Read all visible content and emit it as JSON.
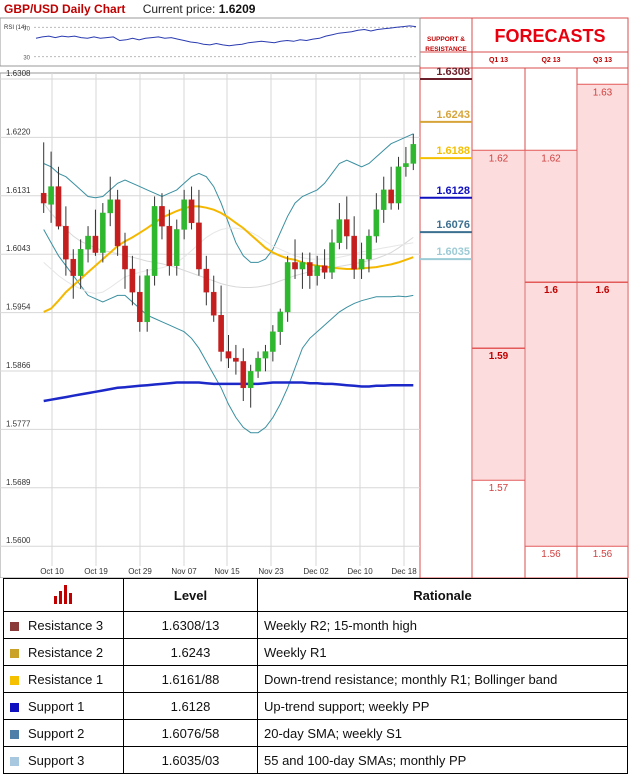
{
  "header": {
    "title": "GBP/USD Daily Chart",
    "price_label": "Current price:",
    "price_value": "1.6209"
  },
  "rsi": {
    "label": "RSI (14)",
    "levels": [
      "70",
      "30"
    ],
    "values": [
      55,
      57,
      58,
      56,
      58,
      57,
      58,
      56,
      55,
      57,
      55,
      56,
      57,
      52,
      53,
      55,
      53,
      55,
      56,
      57,
      55,
      56,
      54,
      52,
      50,
      49,
      47,
      46,
      48,
      46,
      45,
      46,
      47,
      49,
      50,
      51,
      50,
      49,
      51,
      52,
      51,
      53,
      52,
      54,
      55,
      58,
      60,
      62,
      63,
      64,
      66,
      67,
      65,
      67,
      68,
      69,
      70,
      71,
      72,
      71
    ]
  },
  "chart_data": {
    "type": "candlestick",
    "title": "GBP/USD Daily Chart",
    "y_ticks": [
      "1.6308",
      "1.6220",
      "1.6131",
      "1.6043",
      "1.5954",
      "1.5866",
      "1.5777",
      "1.5689",
      "1.5600"
    ],
    "ylim": [
      1.56,
      1.6308
    ],
    "x_ticks": [
      "Oct 10",
      "Oct 19",
      "Oct 29",
      "Nov 07",
      "Nov 15",
      "Nov 23",
      "Dec 02",
      "Dec 10",
      "Dec 18"
    ],
    "grid": true,
    "candles": [
      {
        "o": 1.6135,
        "h": 1.6212,
        "l": 1.6105,
        "c": 1.612
      },
      {
        "o": 1.6118,
        "h": 1.6198,
        "l": 1.609,
        "c": 1.6145
      },
      {
        "o": 1.6145,
        "h": 1.6175,
        "l": 1.608,
        "c": 1.6085
      },
      {
        "o": 1.6085,
        "h": 1.6115,
        "l": 1.601,
        "c": 1.6035
      },
      {
        "o": 1.6035,
        "h": 1.605,
        "l": 1.5975,
        "c": 1.601
      },
      {
        "o": 1.601,
        "h": 1.6065,
        "l": 1.599,
        "c": 1.605
      },
      {
        "o": 1.605,
        "h": 1.6085,
        "l": 1.603,
        "c": 1.607
      },
      {
        "o": 1.607,
        "h": 1.611,
        "l": 1.604,
        "c": 1.6045
      },
      {
        "o": 1.6045,
        "h": 1.612,
        "l": 1.603,
        "c": 1.6105
      },
      {
        "o": 1.6105,
        "h": 1.616,
        "l": 1.6085,
        "c": 1.6125
      },
      {
        "o": 1.6125,
        "h": 1.614,
        "l": 1.604,
        "c": 1.6055
      },
      {
        "o": 1.6055,
        "h": 1.6075,
        "l": 1.599,
        "c": 1.602
      },
      {
        "o": 1.602,
        "h": 1.604,
        "l": 1.5965,
        "c": 1.5985
      },
      {
        "o": 1.5985,
        "h": 1.601,
        "l": 1.5925,
        "c": 1.594
      },
      {
        "o": 1.594,
        "h": 1.602,
        "l": 1.5925,
        "c": 1.601
      },
      {
        "o": 1.601,
        "h": 1.613,
        "l": 1.5995,
        "c": 1.6115
      },
      {
        "o": 1.6115,
        "h": 1.6135,
        "l": 1.6065,
        "c": 1.6085
      },
      {
        "o": 1.6085,
        "h": 1.611,
        "l": 1.601,
        "c": 1.6025
      },
      {
        "o": 1.6025,
        "h": 1.6095,
        "l": 1.601,
        "c": 1.608
      },
      {
        "o": 1.608,
        "h": 1.614,
        "l": 1.6065,
        "c": 1.6125
      },
      {
        "o": 1.6125,
        "h": 1.6145,
        "l": 1.608,
        "c": 1.609
      },
      {
        "o": 1.609,
        "h": 1.614,
        "l": 1.601,
        "c": 1.602
      },
      {
        "o": 1.602,
        "h": 1.604,
        "l": 1.5965,
        "c": 1.5985
      },
      {
        "o": 1.5985,
        "h": 1.601,
        "l": 1.594,
        "c": 1.595
      },
      {
        "o": 1.595,
        "h": 1.5995,
        "l": 1.588,
        "c": 1.5895
      },
      {
        "o": 1.5895,
        "h": 1.592,
        "l": 1.587,
        "c": 1.5885
      },
      {
        "o": 1.5885,
        "h": 1.5905,
        "l": 1.586,
        "c": 1.588
      },
      {
        "o": 1.588,
        "h": 1.59,
        "l": 1.582,
        "c": 1.584
      },
      {
        "o": 1.584,
        "h": 1.5875,
        "l": 1.581,
        "c": 1.5865
      },
      {
        "o": 1.5865,
        "h": 1.5895,
        "l": 1.5855,
        "c": 1.5885
      },
      {
        "o": 1.5885,
        "h": 1.5905,
        "l": 1.5865,
        "c": 1.5895
      },
      {
        "o": 1.5895,
        "h": 1.5935,
        "l": 1.588,
        "c": 1.5925
      },
      {
        "o": 1.5925,
        "h": 1.596,
        "l": 1.5905,
        "c": 1.5955
      },
      {
        "o": 1.5955,
        "h": 1.604,
        "l": 1.594,
        "c": 1.603
      },
      {
        "o": 1.603,
        "h": 1.6065,
        "l": 1.6005,
        "c": 1.602
      },
      {
        "o": 1.602,
        "h": 1.6045,
        "l": 1.599,
        "c": 1.603
      },
      {
        "o": 1.603,
        "h": 1.6045,
        "l": 1.599,
        "c": 1.601
      },
      {
        "o": 1.601,
        "h": 1.604,
        "l": 1.5995,
        "c": 1.6025
      },
      {
        "o": 1.6025,
        "h": 1.605,
        "l": 1.6005,
        "c": 1.6015
      },
      {
        "o": 1.6015,
        "h": 1.608,
        "l": 1.6005,
        "c": 1.606
      },
      {
        "o": 1.606,
        "h": 1.612,
        "l": 1.605,
        "c": 1.6095
      },
      {
        "o": 1.6095,
        "h": 1.613,
        "l": 1.605,
        "c": 1.607
      },
      {
        "o": 1.607,
        "h": 1.61,
        "l": 1.6005,
        "c": 1.602
      },
      {
        "o": 1.602,
        "h": 1.606,
        "l": 1.6005,
        "c": 1.6035
      },
      {
        "o": 1.6035,
        "h": 1.608,
        "l": 1.6015,
        "c": 1.607
      },
      {
        "o": 1.607,
        "h": 1.6135,
        "l": 1.606,
        "c": 1.611
      },
      {
        "o": 1.611,
        "h": 1.616,
        "l": 1.609,
        "c": 1.614
      },
      {
        "o": 1.614,
        "h": 1.6175,
        "l": 1.611,
        "c": 1.612
      },
      {
        "o": 1.612,
        "h": 1.619,
        "l": 1.611,
        "c": 1.6175
      },
      {
        "o": 1.6175,
        "h": 1.6205,
        "l": 1.616,
        "c": 1.618
      },
      {
        "o": 1.618,
        "h": 1.6225,
        "l": 1.617,
        "c": 1.6209
      }
    ],
    "series": [
      {
        "values": [
          1.612,
          1.6105,
          1.6092,
          1.608,
          1.607,
          1.6062,
          1.6057,
          1.6052,
          1.6048,
          1.6046,
          1.6043,
          1.604,
          1.6038,
          1.6035,
          1.6032,
          1.603,
          1.6028,
          1.6025,
          1.6022,
          1.6018,
          1.6014,
          1.601,
          1.6006,
          1.6002,
          1.5998,
          1.5995,
          1.5993,
          1.5992,
          1.5992,
          1.5993,
          1.5995,
          1.5998,
          1.6002,
          1.6006,
          1.601,
          1.6013,
          1.6016,
          1.6018,
          1.602,
          1.6022,
          1.6024,
          1.6026,
          1.6028,
          1.603,
          1.6033,
          1.6036,
          1.604,
          1.6045,
          1.6052,
          1.606,
          1.6068
        ]
      },
      {
        "values": [
          1.618,
          1.6175,
          1.6165,
          1.616,
          1.615,
          1.614,
          1.613,
          1.6128,
          1.613,
          1.614,
          1.615,
          1.6155,
          1.615,
          1.6145,
          1.614,
          1.6135,
          1.613,
          1.6135,
          1.614,
          1.615,
          1.616,
          1.6165,
          1.616,
          1.6145,
          1.612,
          1.609,
          1.606,
          1.604,
          1.603,
          1.603,
          1.6035,
          1.605,
          1.6075,
          1.61,
          1.612,
          1.613,
          1.6135,
          1.614,
          1.615,
          1.6165,
          1.618,
          1.6185,
          1.618,
          1.6175,
          1.618,
          1.619,
          1.62,
          1.621,
          1.6215,
          1.622,
          1.6225
        ]
      },
      {
        "values": [
          1.608,
          1.606,
          1.604,
          1.6025,
          1.601,
          1.5995,
          1.598,
          1.5975,
          1.597,
          1.5975,
          1.598,
          1.598,
          1.597,
          1.596,
          1.595,
          1.5945,
          1.594,
          1.5935,
          1.593,
          1.5925,
          1.5915,
          1.59,
          1.588,
          1.586,
          1.584,
          1.5815,
          1.5795,
          1.578,
          1.5772,
          1.5772,
          1.578,
          1.5795,
          1.5815,
          1.584,
          1.587,
          1.59,
          1.5915,
          1.5925,
          1.5935,
          1.5945,
          1.5955,
          1.5962,
          1.5968,
          1.5972,
          1.5975,
          1.5978,
          1.5978,
          1.5978,
          1.5979,
          1.5978,
          1.598
        ]
      },
      {
        "values": [
          1.603,
          1.602,
          1.601,
          1.6002,
          1.5995,
          1.599,
          1.5985,
          1.5983,
          1.5985,
          1.5992,
          1.6,
          1.6008,
          1.6012,
          1.6015,
          1.6018,
          1.602,
          1.6022,
          1.6025,
          1.603,
          1.6038,
          1.6048,
          1.6058,
          1.6068,
          1.6075,
          1.608,
          1.6082,
          1.6082,
          1.608,
          1.6076,
          1.607,
          1.6062,
          1.6055,
          1.605,
          1.6045,
          1.604,
          1.6037,
          1.6035,
          1.6035,
          1.6035,
          1.6036,
          1.6038,
          1.604,
          1.6043,
          1.6046,
          1.6048,
          1.605,
          1.6052,
          1.6054,
          1.6056,
          1.6058,
          1.606
        ]
      },
      {
        "values": [
          1.5955,
          1.596,
          1.5972,
          1.5985,
          1.5995,
          1.6005,
          1.6015,
          1.6025,
          1.6035,
          1.6045,
          1.6055,
          1.6062,
          1.6068,
          1.6075,
          1.6082,
          1.609,
          1.6098,
          1.6103,
          1.6108,
          1.6112,
          1.6115,
          1.6115,
          1.6113,
          1.611,
          1.6105,
          1.6098,
          1.609,
          1.6082,
          1.6072,
          1.6062,
          1.6052,
          1.6045,
          1.604,
          1.6036,
          1.6034,
          1.603,
          1.6027,
          1.6025,
          1.6024,
          1.6022,
          1.6021,
          1.602,
          1.602,
          1.6021,
          1.6022,
          1.6023,
          1.6025,
          1.6027,
          1.603,
          1.6034,
          1.6038
        ]
      },
      {
        "values": [
          1.582,
          1.5822,
          1.5824,
          1.5826,
          1.5828,
          1.583,
          1.5832,
          1.5834,
          1.5836,
          1.5838,
          1.584,
          1.5841,
          1.5842,
          1.5843,
          1.5844,
          1.5845,
          1.5846,
          1.5847,
          1.5848,
          1.5848,
          1.5848,
          1.5848,
          1.5847,
          1.5846,
          1.5846,
          1.5846,
          1.5846,
          1.5846,
          1.5846,
          1.5846,
          1.5847,
          1.5848,
          1.5848,
          1.5848,
          1.5848,
          1.5848,
          1.5847,
          1.5847,
          1.5846,
          1.5846,
          1.5845,
          1.5844,
          1.5843,
          1.5842,
          1.5842,
          1.5843,
          1.5843,
          1.5844,
          1.5844,
          1.5844,
          1.5844
        ]
      }
    ],
    "levels": [
      {
        "value": 1.6308,
        "label": "1.6308",
        "color": "#6b1f2a"
      },
      {
        "value": 1.6243,
        "label": "1.6243",
        "color": "#d7a43a"
      },
      {
        "value": 1.6188,
        "label": "1.6188",
        "color": "#f5c000"
      },
      {
        "value": 1.6128,
        "label": "1.6128",
        "color": "#1010c0"
      },
      {
        "value": 1.6076,
        "label": "1.6076",
        "color": "#3c7090"
      },
      {
        "value": 1.6035,
        "label": "1.6035",
        "color": "#9ccbd6"
      }
    ]
  },
  "forecasts": {
    "title": "FORECASTS",
    "sr_header": [
      "SUPPORT &",
      "RESISTANCE"
    ],
    "quarters": [
      "Q1 13",
      "Q2 13",
      "Q3 13"
    ],
    "lines": [
      {
        "quarter": 0,
        "value": 1.62,
        "label": "1.62",
        "bold": false
      },
      {
        "quarter": 0,
        "value": 1.59,
        "label": "1.59",
        "bold": true
      },
      {
        "quarter": 0,
        "value": 1.57,
        "label": "1.57",
        "bold": false
      },
      {
        "quarter": 1,
        "value": 1.62,
        "label": "1.62",
        "bold": false
      },
      {
        "quarter": 1,
        "value": 1.6,
        "label": "1.6",
        "bold": true
      },
      {
        "quarter": 1,
        "value": 1.56,
        "label": "1.56",
        "bold": false
      },
      {
        "quarter": 2,
        "value": 1.63,
        "label": "1.63",
        "bold": false
      },
      {
        "quarter": 2,
        "value": 1.6,
        "label": "1.6",
        "bold": true
      },
      {
        "quarter": 2,
        "value": 1.56,
        "label": "1.56",
        "bold": false
      }
    ]
  },
  "table": {
    "headers": {
      "level": "Level",
      "rationale": "Rationale"
    },
    "icon": "bar-chart-icon",
    "rows": [
      {
        "name": "Resistance 3",
        "level": "1.6308/13",
        "rationale": "Weekly R2; 15-month high",
        "color": "#8b3a3a"
      },
      {
        "name": "Resistance 2",
        "level": "1.6243",
        "rationale": "Weekly R1",
        "color": "#c9a227"
      },
      {
        "name": "Resistance 1",
        "level": "1.6161/88",
        "rationale": "Down-trend resistance; monthly R1; Bollinger band",
        "color": "#f5c000"
      },
      {
        "name": "Support 1",
        "level": "1.6128",
        "rationale": "Up-trend support; weekly PP",
        "color": "#1010c0"
      },
      {
        "name": "Support 2",
        "level": "1.6076/58",
        "rationale": "20-day SMA; weekly S1",
        "color": "#4d7fa8"
      },
      {
        "name": "Support 3",
        "level": "1.6035/03",
        "rationale": "55 and 100-day SMAs; monthly PP",
        "color": "#a8c8e0"
      }
    ]
  }
}
